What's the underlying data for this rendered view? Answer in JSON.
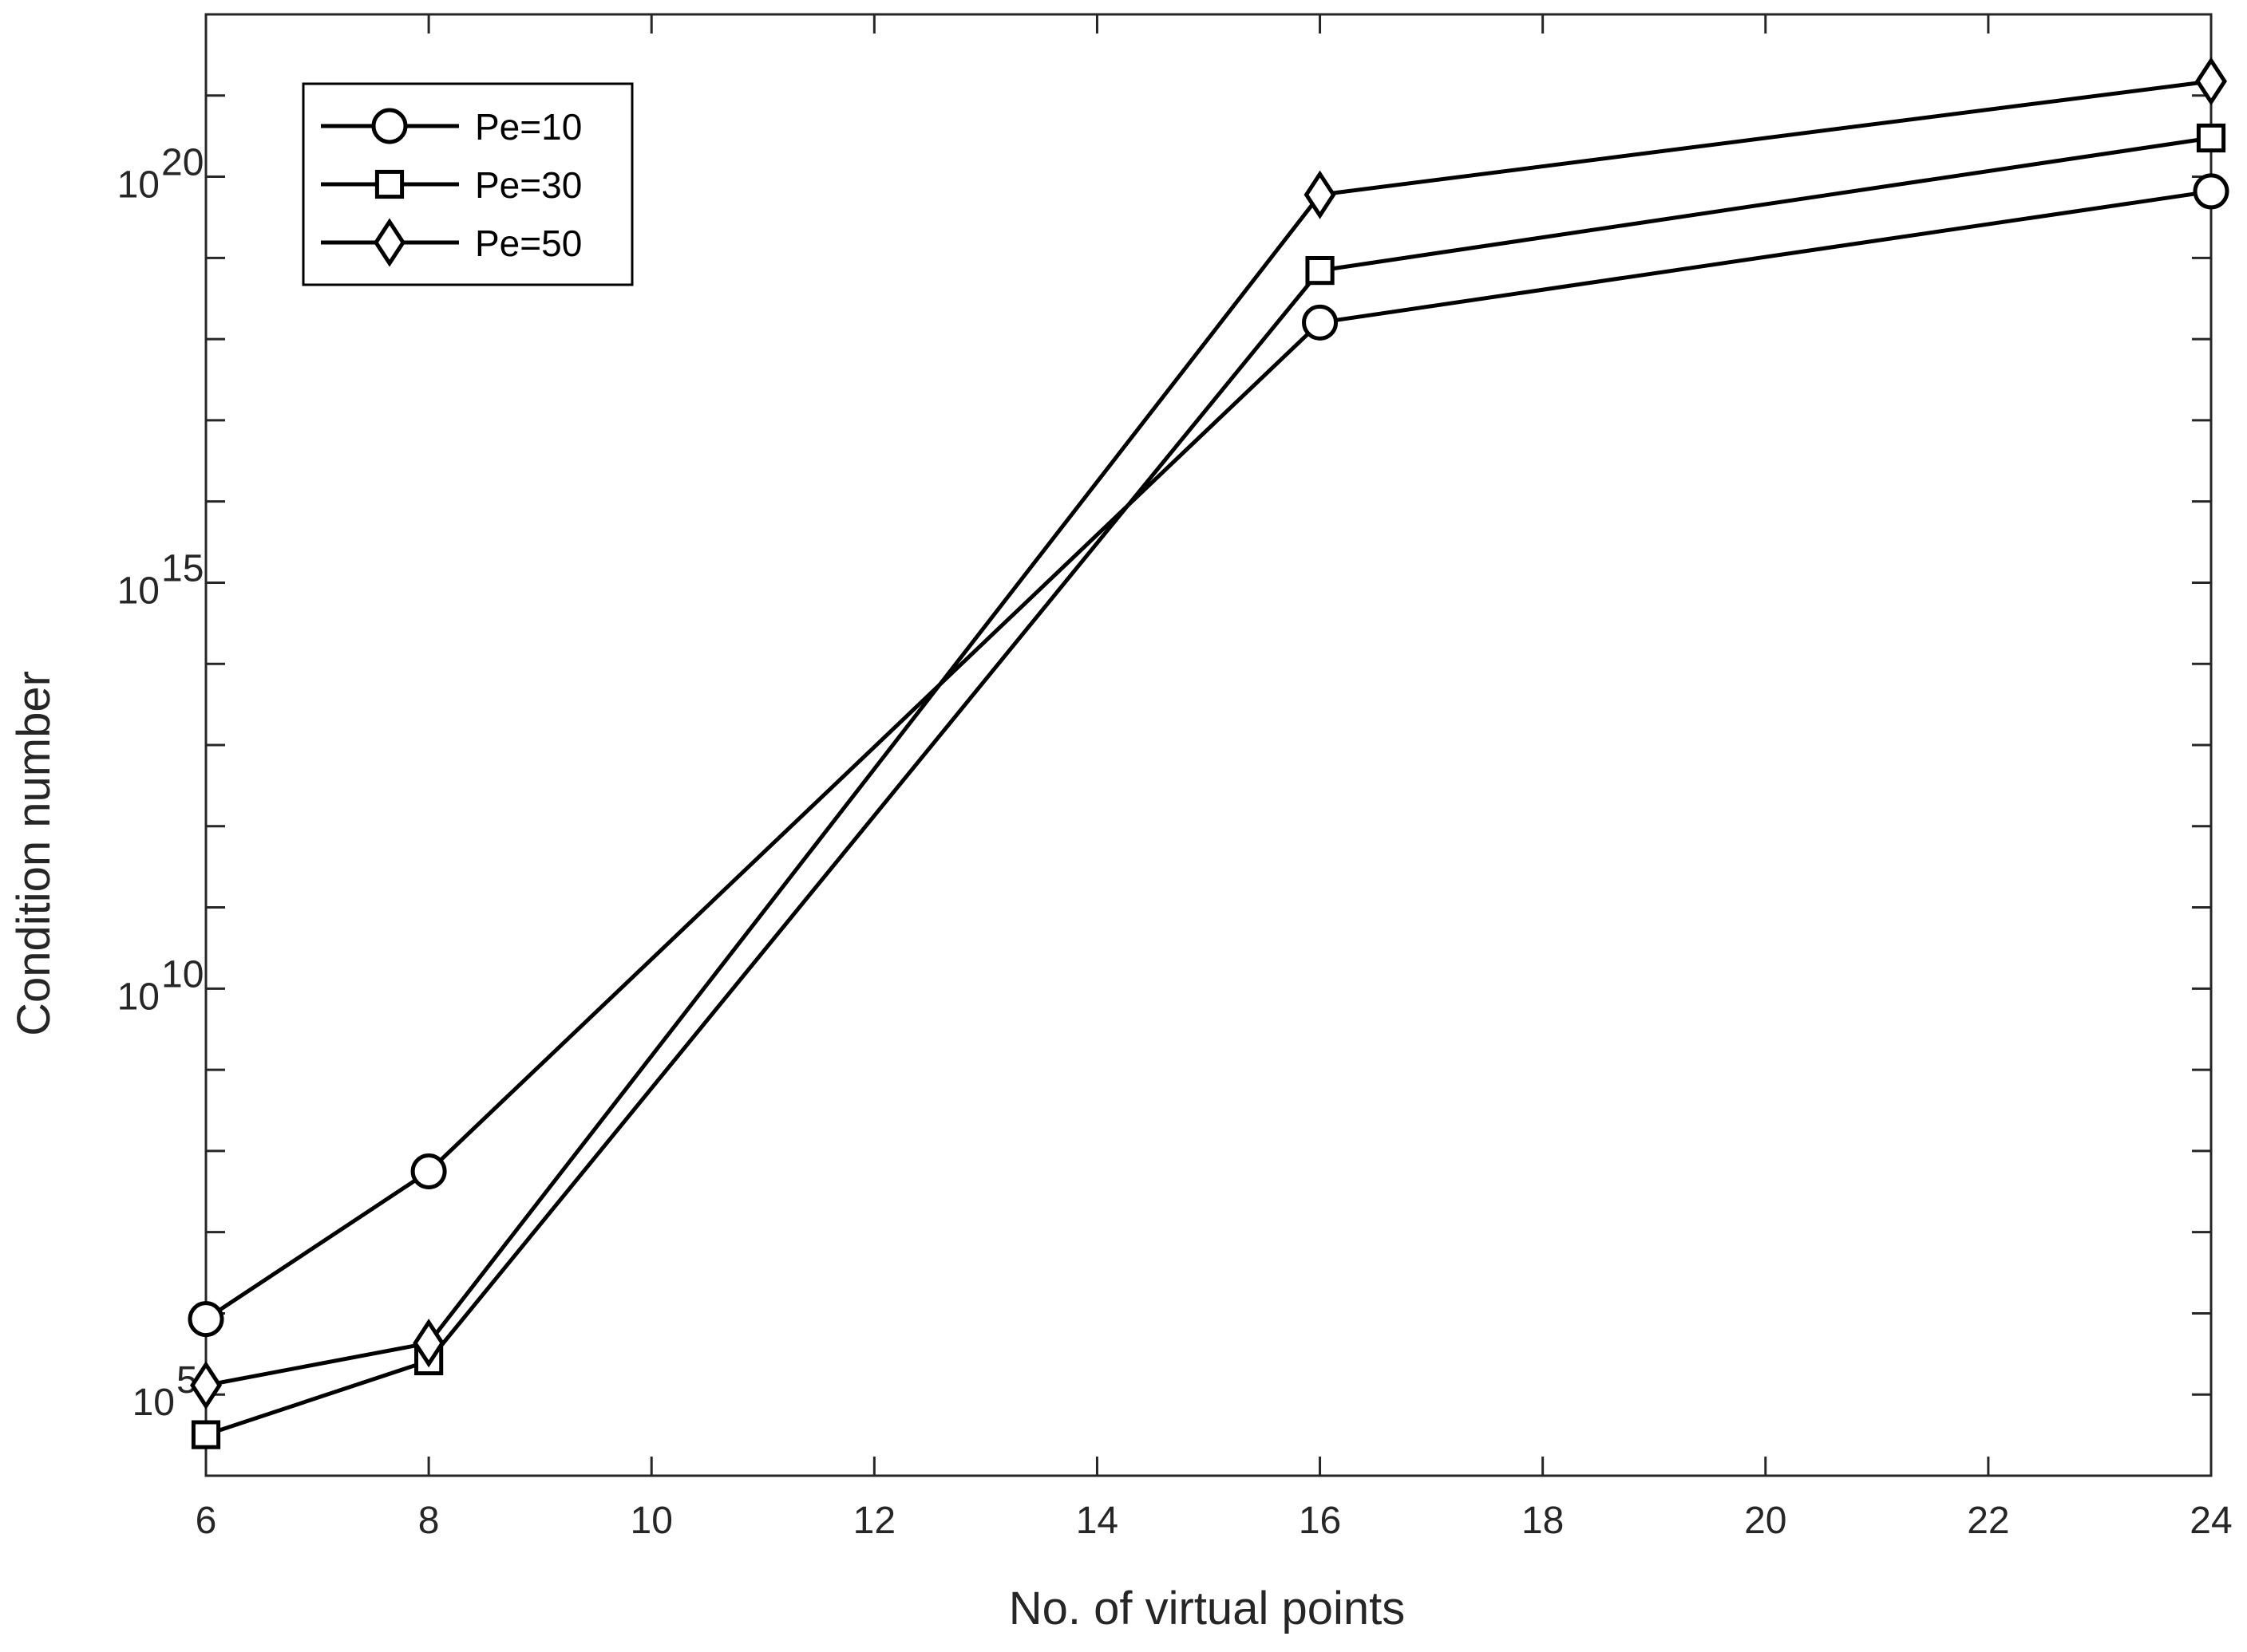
{
  "chart_data": {
    "type": "line",
    "xlabel": "No. of virtual points",
    "ylabel": "Condition number",
    "yscale": "log",
    "xlim": [
      6,
      24
    ],
    "ylim": [
      10000.0,
      1e+22
    ],
    "xticks": [
      6,
      8,
      10,
      12,
      14,
      16,
      18,
      20,
      22,
      24
    ],
    "yticks": [
      {
        "value": 100000.0,
        "base": "10",
        "exp": "5"
      },
      {
        "value": 10000000000.0,
        "base": "10",
        "exp": "10"
      },
      {
        "value": 1000000000000000.0,
        "base": "10",
        "exp": "15"
      },
      {
        "value": 1e+20,
        "base": "10",
        "exp": "20"
      }
    ],
    "grid": false,
    "legend_position": "top-left",
    "line_color": "#000000",
    "marker_fill": "#ffffff",
    "x": [
      6,
      8,
      16,
      24
    ],
    "series": [
      {
        "name": "Pe=10",
        "marker": "circle",
        "values": [
          850000.0,
          56000000.0,
          1.6e+18,
          6.6e+19
        ]
      },
      {
        "name": "Pe=30",
        "marker": "square",
        "values": [
          32000.0,
          260000.0,
          7e+18,
          3e+20
        ]
      },
      {
        "name": "Pe=50",
        "marker": "diamond",
        "values": [
          130000.0,
          430000.0,
          6e+19,
          1.5e+21
        ]
      }
    ]
  }
}
